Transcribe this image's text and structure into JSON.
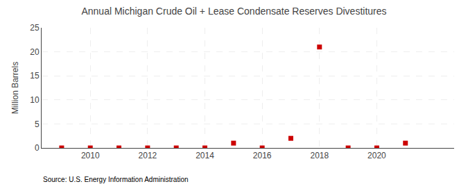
{
  "chart_data": {
    "type": "scatter",
    "title": "Annual Michigan Crude Oil + Lease Condensate Reserves Divestitures",
    "ylabel": "Million Barrels",
    "annotations": [
      "Source: U.S. Energy Information Administration"
    ],
    "x": [
      2009,
      2010,
      2011,
      2012,
      2013,
      2014,
      2015,
      2016,
      2017,
      2018,
      2019,
      2020,
      2021
    ],
    "values": [
      0.0,
      0.0,
      0.0,
      0.0,
      0.0,
      0.0,
      1.0,
      0.0,
      2.0,
      21.0,
      0.0,
      0.0,
      1.0
    ],
    "color": "#cc0000",
    "marker": "square",
    "xlim": [
      2008.3,
      2022.7
    ],
    "xticks": [
      2010,
      2012,
      2014,
      2016,
      2018,
      2020
    ],
    "ylim": [
      0,
      25
    ],
    "yticks": [
      0,
      5,
      10,
      15,
      20,
      25
    ],
    "grid": true
  }
}
